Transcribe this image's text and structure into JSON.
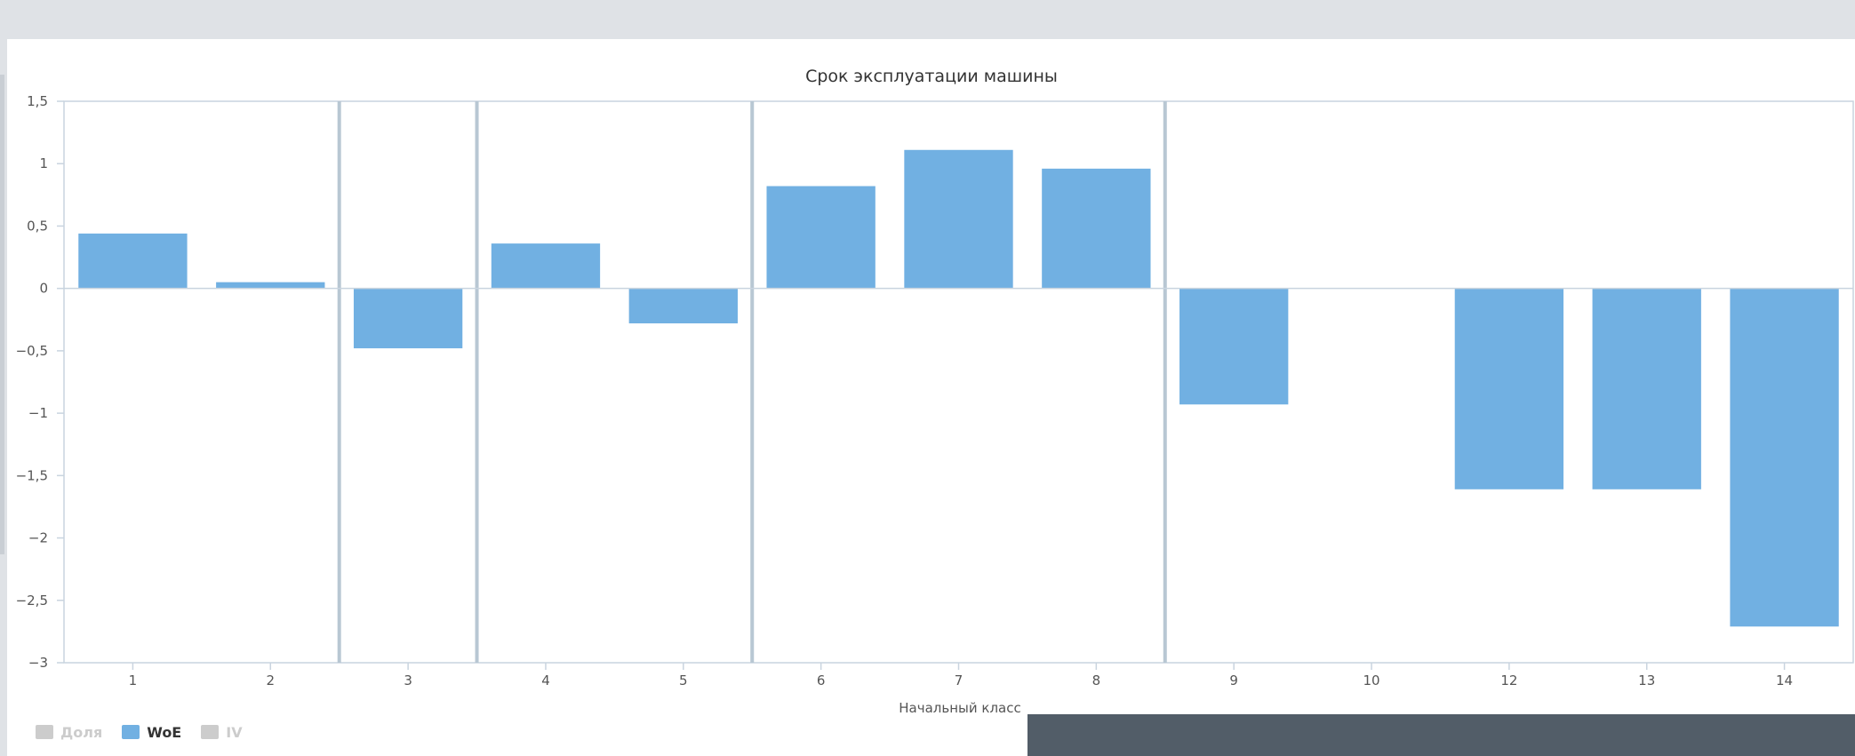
{
  "chart_data": {
    "type": "bar",
    "title": "Срок эксплуатации машины",
    "xlabel": "Начальный класс",
    "ylabel": "",
    "ylim": [
      -3,
      1.5
    ],
    "y_ticks": [
      "1,5",
      "1",
      "0,5",
      "0",
      "−0,5",
      "−1",
      "−1,5",
      "−2",
      "−2,5",
      "−3"
    ],
    "y_tick_values": [
      1.5,
      1,
      0.5,
      0,
      -0.5,
      -1,
      -1.5,
      -2,
      -2.5,
      -3
    ],
    "categories": [
      "1",
      "2",
      "3",
      "4",
      "5",
      "6",
      "7",
      "8",
      "9",
      "10",
      "12",
      "13",
      "14"
    ],
    "series": [
      {
        "name": "WoE",
        "color": "#71b0e2",
        "values": [
          0.44,
          0.05,
          -0.48,
          0.36,
          -0.28,
          0.82,
          1.11,
          0.96,
          -0.93,
          0,
          -1.61,
          -1.61,
          -2.71
        ]
      }
    ],
    "group_separators_after_index": [
      1,
      2,
      4,
      7
    ],
    "grid": false
  },
  "legend": {
    "items": [
      {
        "label": "Доля",
        "color": "#cccccc",
        "state": "hidden"
      },
      {
        "label": "WoE",
        "color": "#71b0e2",
        "state": "active"
      },
      {
        "label": "IV",
        "color": "#cccccc",
        "state": "hidden"
      }
    ]
  },
  "colors": {
    "axis": "#c9d4df",
    "separator": "#b8c7d3",
    "background": "#ffffff"
  }
}
